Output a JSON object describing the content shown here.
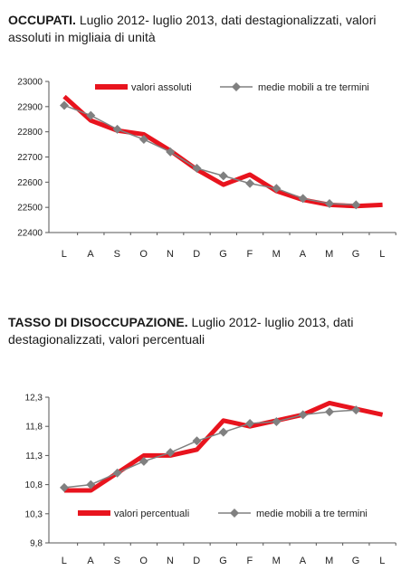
{
  "chart_data": [
    {
      "type": "line",
      "title_bold": "OCCUPATI.",
      "title": "Luglio 2012- luglio 2013, dati destagionalizzati, valori assoluti in migliaia di unità",
      "categories": [
        "L",
        "A",
        "S",
        "O",
        "N",
        "D",
        "G",
        "F",
        "M",
        "A",
        "M",
        "G",
        "L"
      ],
      "ylim": [
        22400,
        23000
      ],
      "yticks": [
        "23000",
        "22900",
        "22800",
        "22700",
        "22600",
        "22500",
        "22400"
      ],
      "series": [
        {
          "name": "valori assoluti",
          "color": "#e8141e",
          "values": [
            22940,
            22845,
            22805,
            22790,
            22725,
            22650,
            22590,
            22630,
            22565,
            22530,
            22510,
            22505,
            22510
          ]
        },
        {
          "name": "medie mobili a tre termini",
          "color": "#808080",
          "values": [
            22905,
            22865,
            22810,
            22770,
            22720,
            22655,
            22625,
            22595,
            22575,
            22535,
            22515,
            22510,
            null
          ]
        }
      ],
      "legend": "top",
      "grid": false
    },
    {
      "type": "line",
      "title_bold": "TASSO DI DISOCCUPAZIONE.",
      "title": "Luglio 2012- luglio 2013, dati destagionalizzati, valori percentuali",
      "categories": [
        "L",
        "A",
        "S",
        "O",
        "N",
        "D",
        "G",
        "F",
        "M",
        "A",
        "M",
        "G",
        "L"
      ],
      "ylim": [
        9.8,
        12.3
      ],
      "yticks": [
        "12,3",
        "11,8",
        "11,3",
        "10,8",
        "10,3",
        "9,8"
      ],
      "series": [
        {
          "name": "valori percentuali",
          "color": "#e8141e",
          "values": [
            10.7,
            10.7,
            11.0,
            11.3,
            11.3,
            11.4,
            11.9,
            11.8,
            11.9,
            12.0,
            12.2,
            12.1,
            12.0
          ]
        },
        {
          "name": "medie mobili a tre termini",
          "color": "#808080",
          "values": [
            10.75,
            10.8,
            11.0,
            11.2,
            11.35,
            11.55,
            11.7,
            11.85,
            11.88,
            12.0,
            12.05,
            12.08,
            null
          ]
        }
      ],
      "legend": "bottom",
      "grid": false
    }
  ]
}
